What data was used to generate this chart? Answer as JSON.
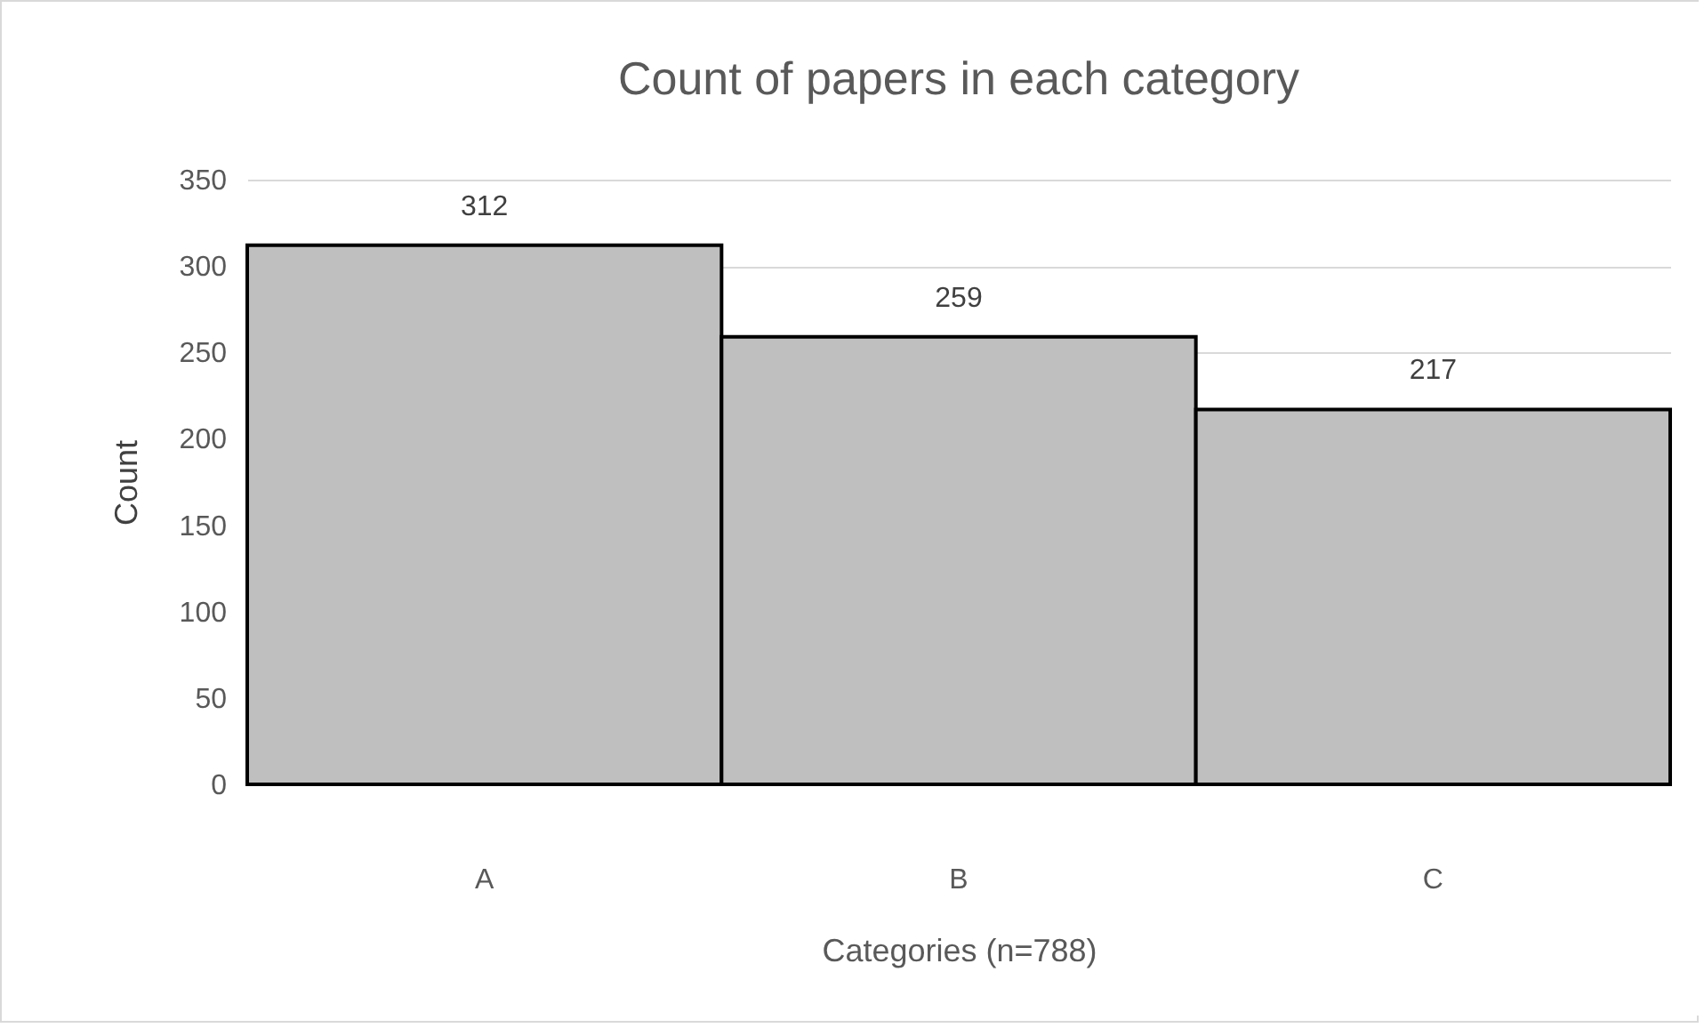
{
  "chart_data": {
    "type": "bar",
    "title": "Count of papers in each category",
    "xlabel": "Categories (n=788)",
    "ylabel": "Count",
    "categories": [
      "A",
      "B",
      "C"
    ],
    "values": [
      312,
      259,
      217
    ],
    "color": "#bfbfbf",
    "ylim": [
      0,
      350
    ],
    "yticks": [
      0,
      50,
      100,
      150,
      200,
      250,
      300,
      350
    ],
    "grid": "y",
    "data_labels": true
  }
}
